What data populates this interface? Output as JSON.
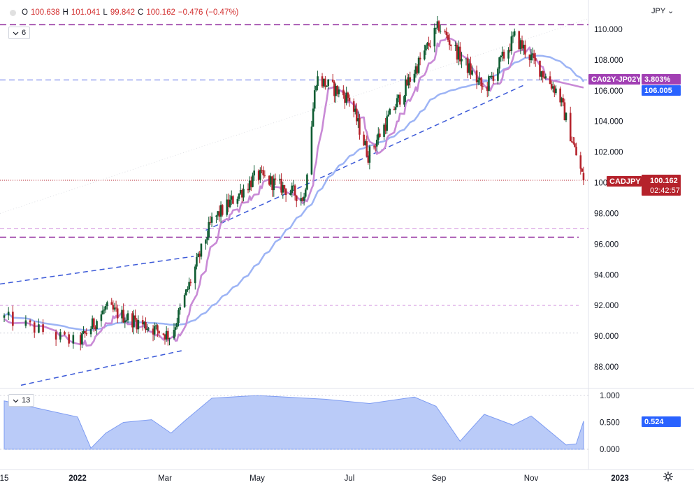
{
  "header": {
    "open_label": "O",
    "open": "100.638",
    "high_label": "H",
    "high": "101.041",
    "low_label": "L",
    "low": "99.842",
    "close_label": "C",
    "close": "100.162",
    "change": "−0.476",
    "change_pct": "(−0.47%)",
    "indicator_count": "6",
    "lower_indicator_count": "13",
    "currency": "JPY"
  },
  "colors": {
    "up": "#0e5c32",
    "down": "#b5222b",
    "spread": "#c98ad6",
    "ma": "#9db4f5",
    "corr_fill": "#a9bef6",
    "trend": "#3c5ad8",
    "resist_purple": "#8a1e97",
    "light_pink": "#d59ae0",
    "blue_dash": "#6878ea"
  },
  "price_axis": {
    "ticks": [
      "110.000",
      "108.000",
      "106.000",
      "104.000",
      "102.000",
      "100.000",
      "98.000",
      "96.000",
      "94.000",
      "92.000",
      "90.000",
      "88.000"
    ]
  },
  "lower_axis": {
    "ticks": [
      "1.000",
      "0.500",
      "0.000"
    ]
  },
  "time_axis": {
    "labels": [
      "15",
      "2022",
      "Mar",
      "May",
      "Jul",
      "Sep",
      "Nov",
      "2023"
    ]
  },
  "tags": {
    "spread_label": "CA02Y-JP02Y",
    "spread_value": "3.803%",
    "ma_value": "106.005",
    "symbol": "CADJPY",
    "price": "100.162",
    "countdown": "02:42:57",
    "corr_value": "0.524"
  },
  "chart_data": [
    {
      "type": "candlestick",
      "title": "CADJPY",
      "y_range": [
        86.5,
        110.5
      ],
      "x_labels": [
        "2022",
        "Mar",
        "May",
        "Jul",
        "Sep",
        "Nov",
        "2023"
      ],
      "key_points": [
        {
          "date": "2021-12-15",
          "close": 91.2
        },
        {
          "date": "2022-01-01",
          "close": 89.5
        },
        {
          "date": "2022-01-20",
          "close": 91.8
        },
        {
          "date": "2022-03-05",
          "close": 90.0
        },
        {
          "date": "2022-04-01",
          "close": 97.5
        },
        {
          "date": "2022-05-01",
          "close": 100.5
        },
        {
          "date": "2022-06-01",
          "close": 99.0
        },
        {
          "date": "2022-06-09",
          "close": 106.8
        },
        {
          "date": "2022-07-01",
          "close": 105.5
        },
        {
          "date": "2022-07-14",
          "close": 101.8
        },
        {
          "date": "2022-09-01",
          "close": 110.2
        },
        {
          "date": "2022-10-01",
          "close": 106.0
        },
        {
          "date": "2022-10-21",
          "close": 109.5
        },
        {
          "date": "2022-11-20",
          "close": 105.8
        },
        {
          "date": "2022-12-07",
          "close": 100.162
        }
      ],
      "last": {
        "open": 100.638,
        "high": 101.041,
        "low": 99.842,
        "close": 100.162
      }
    },
    {
      "type": "line",
      "name": "CA02Y-JP02Y",
      "last_value": 3.803
    },
    {
      "type": "line",
      "last_value": 106.005
    },
    {
      "type": "area",
      "y_range": [
        0,
        1
      ],
      "last_value": 0.524
    }
  ]
}
